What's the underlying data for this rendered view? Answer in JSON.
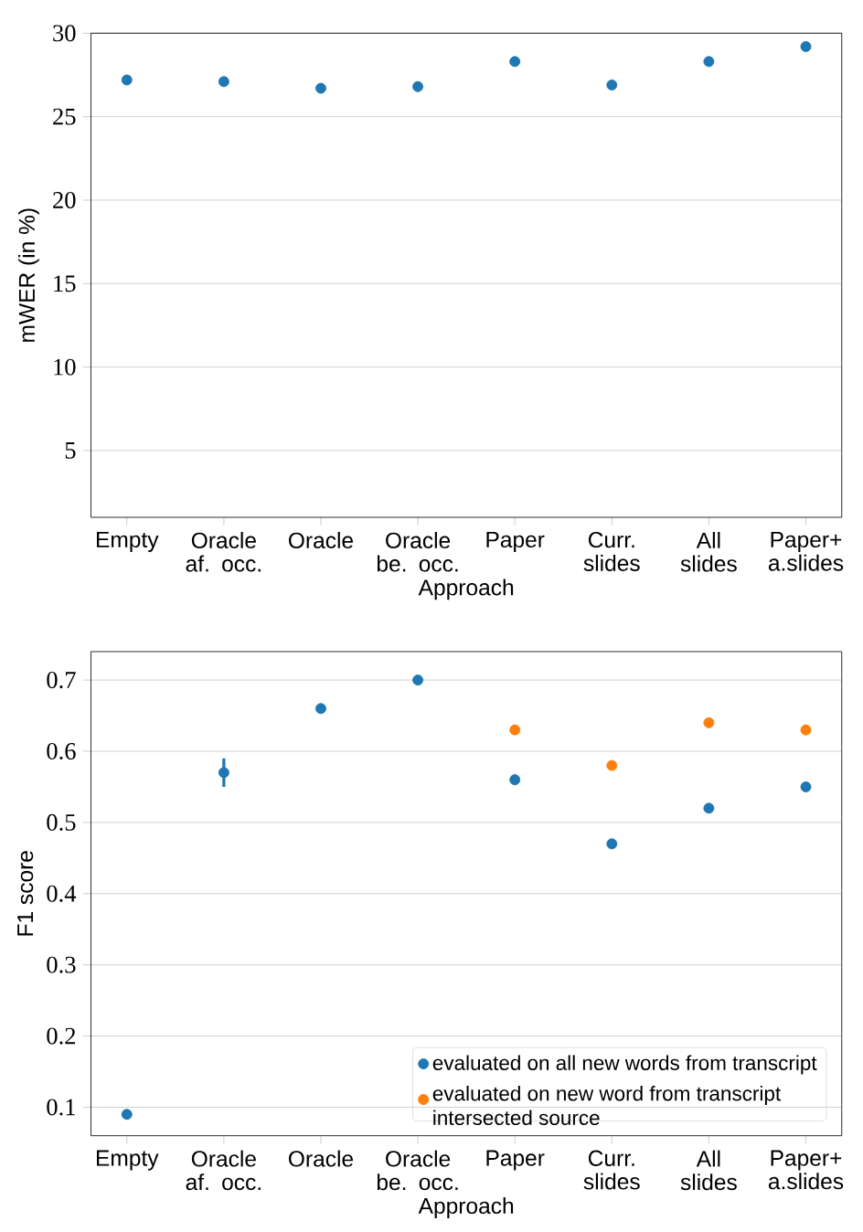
{
  "chart_data": [
    {
      "type": "scatter",
      "categories": [
        "Empty",
        "Oracle af. occ.",
        "Oracle",
        "Oracle be. occ.",
        "Paper",
        "Curr. slides",
        "All slides",
        "Paper+ a.slides"
      ],
      "xlabel": "Approach",
      "ylabel": "mWER (in %)",
      "ylim": [
        1,
        30
      ],
      "yticks": [
        5,
        10,
        15,
        20,
        25,
        30
      ],
      "grid": "y",
      "series": [
        {
          "color": "#1f77b4",
          "values": [
            27.2,
            27.1,
            26.7,
            26.8,
            28.3,
            26.9,
            28.3,
            29.2
          ]
        }
      ]
    },
    {
      "type": "scatter",
      "categories": [
        "Empty",
        "Oracle af. occ.",
        "Oracle",
        "Oracle be. occ.",
        "Paper",
        "Curr. slides",
        "All slides",
        "Paper+ a.slides"
      ],
      "xlabel": "Approach",
      "ylabel": "F1 score",
      "ylim": [
        0.06,
        0.74
      ],
      "yticks": [
        0.1,
        0.2,
        0.3,
        0.4,
        0.5,
        0.6,
        0.7
      ],
      "grid": "y",
      "legend": "bottom right",
      "series": [
        {
          "name": "evaluated on all new words from transcript",
          "color": "#1f77b4",
          "values": [
            0.09,
            0.57,
            0.66,
            0.7,
            0.56,
            0.47,
            0.52,
            0.55
          ],
          "errors": [
            null,
            0.02,
            null,
            null,
            null,
            null,
            null,
            null
          ]
        },
        {
          "name": "evaluated on new word from transcript intersected source",
          "color": "#ff7f0e",
          "values": [
            null,
            null,
            null,
            null,
            0.63,
            0.58,
            0.64,
            0.63
          ]
        }
      ]
    }
  ]
}
